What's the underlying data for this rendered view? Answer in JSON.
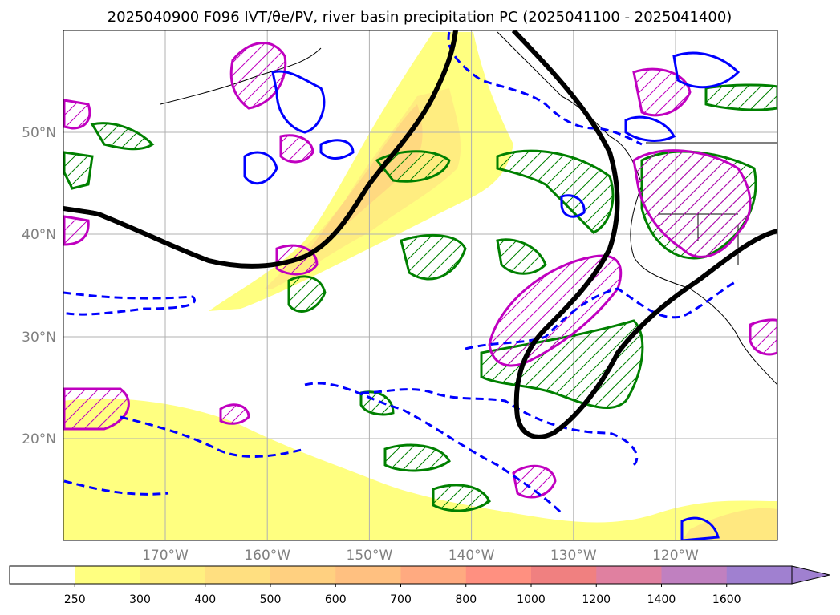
{
  "figure": {
    "title": "2025040900 F096 IVT/θe/PV, river basin precipitation PC (2025041100 - 2025041400)"
  },
  "map": {
    "lat_ticks": [
      {
        "label": "20°N",
        "lat": 20
      },
      {
        "label": "30°N",
        "lat": 30
      },
      {
        "label": "40°N",
        "lat": 40
      },
      {
        "label": "50°N",
        "lat": 50
      }
    ],
    "lon_ticks": [
      {
        "label": "170°W",
        "lon": -170
      },
      {
        "label": "160°W",
        "lon": -160
      },
      {
        "label": "150°W",
        "lon": -150
      },
      {
        "label": "140°W",
        "lon": -140
      },
      {
        "label": "130°W",
        "lon": -130
      },
      {
        "label": "120°W",
        "lon": -120
      }
    ],
    "lon_range": [
      -180,
      -110
    ],
    "lat_range": [
      10,
      60
    ],
    "grid": true,
    "contour_colors": {
      "theta_e": "#000000",
      "pv_positive": "#0000ff",
      "pv_negative_dashed": "#0000ff",
      "precip_pc_positive": "#008000",
      "precip_pc_negative": "#c000c0"
    }
  },
  "colorbar": {
    "ticks": [
      "250",
      "300",
      "400",
      "500",
      "600",
      "700",
      "800",
      "1000",
      "1200",
      "1400",
      "1600"
    ],
    "colors": [
      "#ffffff",
      "#ffff80",
      "#fff080",
      "#ffdf80",
      "#ffd080",
      "#ffc080",
      "#ffaa80",
      "#ff9080",
      "#f08080",
      "#e080a0",
      "#c080c0",
      "#a080d0"
    ],
    "extend": "max"
  }
}
